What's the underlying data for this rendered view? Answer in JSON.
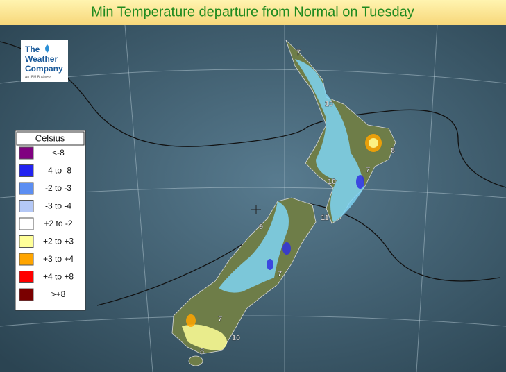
{
  "header": {
    "title": "Min Temperature departure from Normal on Tuesday"
  },
  "logo": {
    "line1": "The",
    "line2": "Weather",
    "line3": "Company",
    "tagline": "An IBM Business"
  },
  "legend": {
    "title": "Celsius",
    "items": [
      {
        "label": "<-8",
        "color": "#800080"
      },
      {
        "label": "-4 to -8",
        "color": "#2323f0"
      },
      {
        "label": "-2 to -3",
        "color": "#5c8ef2"
      },
      {
        "label": "-3 to -4",
        "color": "#b4c8f6"
      },
      {
        "label": "+2 to -2",
        "color": "#ffffff"
      },
      {
        "label": "+2 to +3",
        "color": "#ffff99"
      },
      {
        "label": "+3 to +4",
        "color": "#ffa500"
      },
      {
        "label": "+4 to +8",
        "color": "#ff0000"
      },
      {
        "label": ">+8",
        "color": "#7a0000"
      }
    ]
  },
  "map": {
    "labels": [
      7,
      10,
      8,
      7,
      10,
      11,
      9,
      7,
      7,
      10,
      8
    ]
  }
}
